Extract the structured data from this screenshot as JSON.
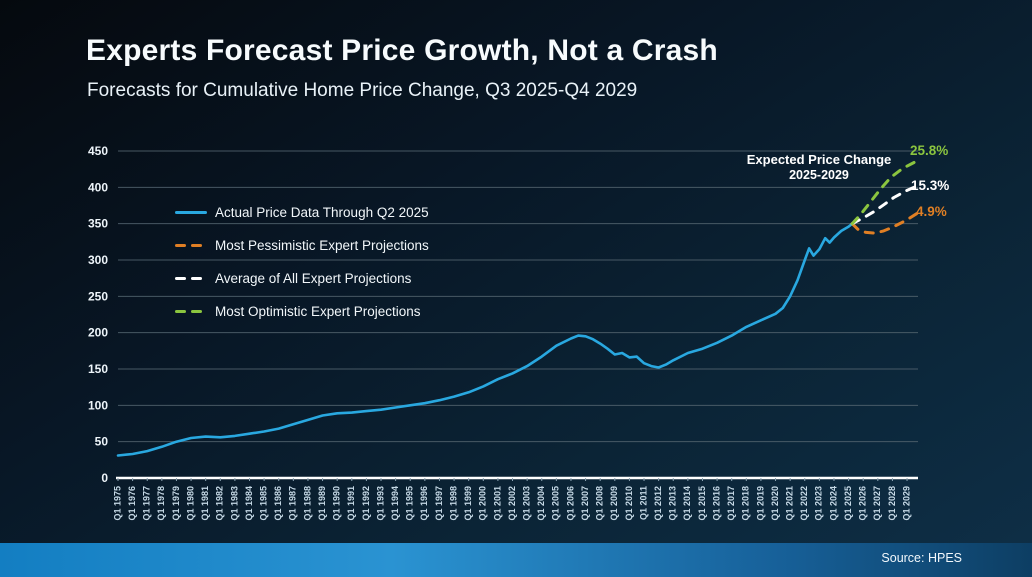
{
  "header": {
    "title": "Experts Forecast Price Growth, Not a Crash",
    "subtitle": "Forecasts for Cumulative Home Price Change, Q3 2025-Q4 2029"
  },
  "footer": {
    "source": "Source: HPES"
  },
  "annotation": {
    "line1": "Expected Price Change",
    "line2": "2025-2029"
  },
  "colors": {
    "background_top": "#05090e",
    "background_bottom": "#0e2f47",
    "grid": "#53646f",
    "axis_line": "#ffffff",
    "y_tick_text": "#eef5fa",
    "x_tick_text": "#c6d9e6",
    "accent_bar_left": "#137ec2",
    "accent_bar_mid": "#2a93d2",
    "accent_bar_right": "#0d3e63",
    "actual_line": "#29a8e0",
    "pessimistic_line": "#e07f24",
    "average_line": "#ffffff",
    "optimistic_line": "#8bc53f"
  },
  "legend": {
    "items": [
      {
        "label": "Actual Price Data Through Q2 2025",
        "color": "#29a8e0",
        "style": "solid"
      },
      {
        "label": "Most Pessimistic Expert Projections",
        "color": "#e07f24",
        "style": "dashed"
      },
      {
        "label": "Average of All Expert Projections",
        "color": "#ffffff",
        "style": "dashed"
      },
      {
        "label": "Most Optimistic Expert Projections",
        "color": "#8bc53f",
        "style": "dashed"
      }
    ]
  },
  "chart_data": {
    "type": "line",
    "title": "Forecasts for Cumulative Home Price Change, Q3 2025-Q4 2029",
    "xlabel": "",
    "ylabel": "",
    "grid": true,
    "legend_position": "inside-top-left",
    "y_axis": {
      "ylim": [
        0,
        450
      ],
      "tick_step": 50,
      "ticks": [
        0,
        50,
        100,
        150,
        200,
        250,
        300,
        350,
        400,
        450
      ]
    },
    "x_axis": {
      "domain": [
        1975,
        2029.75
      ],
      "tick_labels": [
        "Q1 1975",
        "Q1 1976",
        "Q1 1977",
        "Q1 1978",
        "Q1 1979",
        "Q1 1980",
        "Q1 1981",
        "Q1 1982",
        "Q1 1983",
        "Q1 1984",
        "Q1 1985",
        "Q1 1986",
        "Q1 1987",
        "Q1 1988",
        "Q1 1989",
        "Q1 1990",
        "Q1 1991",
        "Q1 1992",
        "Q1 1993",
        "Q1 1994",
        "Q1 1995",
        "Q1 1996",
        "Q1 1997",
        "Q1 1998",
        "Q1 1999",
        "Q1 2000",
        "Q1 2001",
        "Q1 2002",
        "Q1 2003",
        "Q1 2004",
        "Q1 2005",
        "Q1 2006",
        "Q1 2007",
        "Q1 2008",
        "Q1 2009",
        "Q1 2010",
        "Q1 2011",
        "Q1 2012",
        "Q1 2013",
        "Q1 2014",
        "Q1 2015",
        "Q1 2016",
        "Q1 2017",
        "Q1 2018",
        "Q1 2019",
        "Q1 2020",
        "Q1 2021",
        "Q1 2022",
        "Q1 2023",
        "Q1 2024",
        "Q1 2025",
        "Q1 2026",
        "Q1 2027",
        "Q1 2028",
        "Q1 2029"
      ]
    },
    "series": [
      {
        "name": "Actual Price Data Through Q2 2025",
        "color": "#29a8e0",
        "style": "solid",
        "points": [
          [
            1975,
            31
          ],
          [
            1976,
            33
          ],
          [
            1977,
            37
          ],
          [
            1978,
            43
          ],
          [
            1979,
            50
          ],
          [
            1980,
            55
          ],
          [
            1981,
            57
          ],
          [
            1982,
            56
          ],
          [
            1983,
            58
          ],
          [
            1984,
            61
          ],
          [
            1985,
            64
          ],
          [
            1986,
            68
          ],
          [
            1987,
            74
          ],
          [
            1988,
            80
          ],
          [
            1989,
            86
          ],
          [
            1990,
            89
          ],
          [
            1991,
            90
          ],
          [
            1992,
            92
          ],
          [
            1993,
            94
          ],
          [
            1994,
            97
          ],
          [
            1995,
            100
          ],
          [
            1996,
            103
          ],
          [
            1997,
            107
          ],
          [
            1998,
            112
          ],
          [
            1999,
            118
          ],
          [
            2000,
            126
          ],
          [
            2001,
            136
          ],
          [
            2002,
            144
          ],
          [
            2003,
            154
          ],
          [
            2004,
            167
          ],
          [
            2005,
            182
          ],
          [
            2006,
            192
          ],
          [
            2006.5,
            196
          ],
          [
            2007,
            195
          ],
          [
            2007.5,
            191
          ],
          [
            2008,
            185
          ],
          [
            2008.5,
            178
          ],
          [
            2009,
            170
          ],
          [
            2009.5,
            172
          ],
          [
            2010,
            166
          ],
          [
            2010.5,
            167
          ],
          [
            2011,
            158
          ],
          [
            2011.5,
            154
          ],
          [
            2012,
            152
          ],
          [
            2012.5,
            156
          ],
          [
            2013,
            162
          ],
          [
            2014,
            172
          ],
          [
            2015,
            178
          ],
          [
            2016,
            186
          ],
          [
            2017,
            196
          ],
          [
            2018,
            208
          ],
          [
            2019,
            217
          ],
          [
            2020,
            226
          ],
          [
            2020.5,
            234
          ],
          [
            2021,
            250
          ],
          [
            2021.5,
            272
          ],
          [
            2022,
            300
          ],
          [
            2022.3,
            316
          ],
          [
            2022.6,
            306
          ],
          [
            2023,
            315
          ],
          [
            2023.4,
            330
          ],
          [
            2023.7,
            324
          ],
          [
            2024,
            331
          ],
          [
            2024.5,
            340
          ],
          [
            2025,
            346
          ],
          [
            2025.25,
            350
          ]
        ]
      },
      {
        "name": "Most Pessimistic Expert Projections",
        "color": "#e07f24",
        "style": "dashed",
        "end_label": "4.9%",
        "points": [
          [
            2025.25,
            350
          ],
          [
            2025.7,
            341
          ],
          [
            2026.2,
            338
          ],
          [
            2026.8,
            337
          ],
          [
            2027.4,
            340
          ],
          [
            2028,
            345
          ],
          [
            2028.6,
            351
          ],
          [
            2029.2,
            358
          ],
          [
            2029.75,
            365
          ]
        ]
      },
      {
        "name": "Average of All Expert Projections",
        "color": "#ffffff",
        "style": "dashed",
        "end_label": "15.3%",
        "points": [
          [
            2025.25,
            350
          ],
          [
            2026,
            358
          ],
          [
            2026.7,
            366
          ],
          [
            2027.4,
            376
          ],
          [
            2028.1,
            386
          ],
          [
            2028.9,
            395
          ],
          [
            2029.7,
            402
          ]
        ]
      },
      {
        "name": "Most Optimistic Expert Projections",
        "color": "#8bc53f",
        "style": "dashed",
        "end_label": "25.8%",
        "points": [
          [
            2025.25,
            350
          ],
          [
            2025.8,
            362
          ],
          [
            2026.5,
            380
          ],
          [
            2027.2,
            398
          ],
          [
            2027.9,
            414
          ],
          [
            2028.7,
            426
          ],
          [
            2029.65,
            436
          ]
        ]
      }
    ]
  }
}
